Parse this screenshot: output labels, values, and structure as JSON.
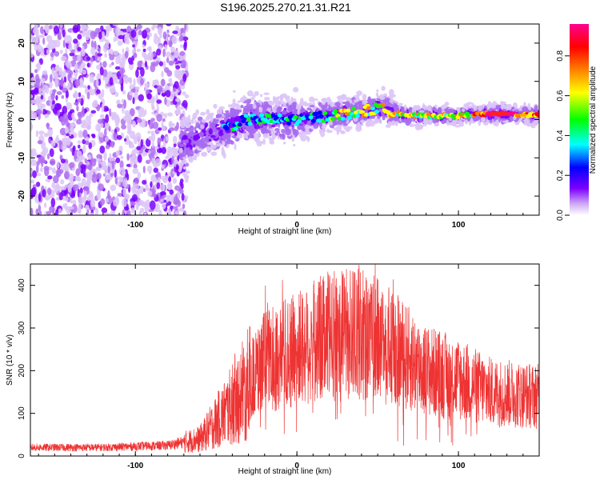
{
  "chart_data": [
    {
      "type": "heatmap",
      "title": "S196.2025.270.21.31.R21",
      "xlabel": "Height of straight line (km)",
      "ylabel": "Frequency (Hz)",
      "xlim": [
        -165,
        150
      ],
      "ylim": [
        -25,
        25
      ],
      "x_ticks": [
        -100,
        0,
        100
      ],
      "y_ticks": [
        -20,
        -10,
        0,
        10,
        20
      ],
      "colorbar": {
        "label": "Normalized spectral amplitude",
        "range": [
          0,
          0.96
        ],
        "ticks": [
          0.0,
          0.2,
          0.4,
          0.6,
          0.8
        ],
        "colors": [
          "#ffffff",
          "#cfa8f5",
          "#7b00ff",
          "#0000ff",
          "#00ffff",
          "#00ff00",
          "#ffff00",
          "#ff8000",
          "#ff0000",
          "#ff0090"
        ]
      },
      "ridge_frequency": [
        {
          "x": -70,
          "y": -6
        },
        {
          "x": -50,
          "y": -3
        },
        {
          "x": -30,
          "y": 0
        },
        {
          "x": 0,
          "y": 0
        },
        {
          "x": 20,
          "y": 1
        },
        {
          "x": 40,
          "y": 2
        },
        {
          "x": 50,
          "y": 3
        },
        {
          "x": 70,
          "y": 1
        },
        {
          "x": 100,
          "y": 1
        },
        {
          "x": 115,
          "y": 1.5
        },
        {
          "x": 130,
          "y": 1.5
        },
        {
          "x": 150,
          "y": 1
        }
      ],
      "ridge_peak_amplitude": 0.9
    },
    {
      "type": "line",
      "xlabel": "Height of straight line (km)",
      "ylabel": "SNR (10 * v/v)",
      "xlim": [
        -165,
        150
      ],
      "ylim": [
        0,
        450
      ],
      "x_ticks": [
        -100,
        0,
        100
      ],
      "y_ticks": [
        0,
        100,
        200,
        300,
        400
      ],
      "line_color": "#ee3333",
      "envelope": [
        {
          "x": -165,
          "y": 20
        },
        {
          "x": -120,
          "y": 20
        },
        {
          "x": -80,
          "y": 25
        },
        {
          "x": -60,
          "y": 40
        },
        {
          "x": -40,
          "y": 120
        },
        {
          "x": -20,
          "y": 220
        },
        {
          "x": 0,
          "y": 250
        },
        {
          "x": 20,
          "y": 280
        },
        {
          "x": 40,
          "y": 290
        },
        {
          "x": 60,
          "y": 250
        },
        {
          "x": 80,
          "y": 200
        },
        {
          "x": 100,
          "y": 180
        },
        {
          "x": 120,
          "y": 150
        },
        {
          "x": 150,
          "y": 140
        }
      ],
      "max_value": 450
    }
  ]
}
